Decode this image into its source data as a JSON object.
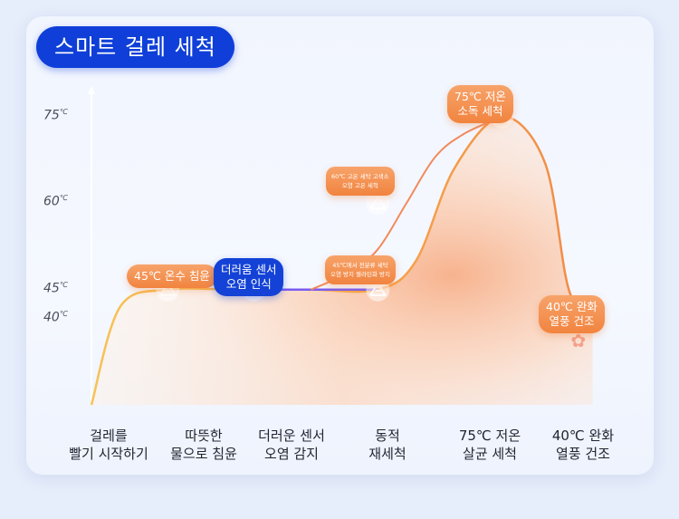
{
  "title": "스마트 걸레 세척",
  "colors": {
    "title_bg": "#0f3fd8",
    "curve_orange": "#f6a64a",
    "curve_purple": "#7b5cf0",
    "badge_orange": "#f1843f",
    "badge_blue": "#1442d6"
  },
  "annotations": [
    {
      "text": "45℃ 온수 침윤",
      "style": "orange"
    },
    {
      "text": "더러움 센서\n오염 인식",
      "style": "blue"
    },
    {
      "text": "60℃ 고온 세탁 고색소\n오염 고온 세척",
      "style": "orange"
    },
    {
      "text": "45℃에서 전분류 세탁\n오염 방지 젤라틴화 방지",
      "style": "orange"
    },
    {
      "text": "75℃ 저온\n소독 세척",
      "style": "orange"
    },
    {
      "text": "40℃ 완화\n열풍 건조",
      "style": "orange"
    }
  ],
  "icons": [
    "triangle-marker-icon",
    "sensor-icon",
    "fan-icon"
  ],
  "chart_data": {
    "type": "line",
    "title": "스마트 걸레 세척",
    "y_ticks": [
      "75",
      "60",
      "45",
      "40"
    ],
    "y_unit": "℃",
    "categories": [
      "걸레를\n빨기 시작하기",
      "따뜻한\n물으로 침윤",
      "더러운 센서\n오염 감지",
      "동적\n재세척",
      "75℃ 저온\n살균 세척",
      "40℃ 완화\n열풍 건조"
    ],
    "series": [
      {
        "points": [
          {
            "x": 0,
            "y": 25
          },
          {
            "x": 0.3,
            "y": 42
          },
          {
            "x": 0.8,
            "y": 45
          },
          {
            "x": 1.5,
            "y": 45
          },
          {
            "x": 2.3,
            "y": 45
          },
          {
            "x": 3.0,
            "y": 45
          },
          {
            "x": 3.4,
            "y": 50
          },
          {
            "x": 3.8,
            "y": 66
          },
          {
            "x": 4.3,
            "y": 75
          },
          {
            "x": 4.75,
            "y": 67
          },
          {
            "x": 5.0,
            "y": 45
          },
          {
            "x": 5.25,
            "y": 40
          }
        ]
      },
      {
        "points": [
          {
            "x": 2.3,
            "y": 45
          },
          {
            "x": 2.7,
            "y": 48
          },
          {
            "x": 3.0,
            "y": 52
          },
          {
            "x": 3.3,
            "y": 60
          },
          {
            "x": 3.6,
            "y": 68
          },
          {
            "x": 3.9,
            "y": 72
          },
          {
            "x": 4.3,
            "y": 75
          }
        ]
      }
    ],
    "markers": [
      {
        "x": 0.8,
        "y": 45,
        "icon": "triangle-marker-icon"
      },
      {
        "x": 1.7,
        "y": 45,
        "icon": "sensor-icon"
      },
      {
        "x": 3.0,
        "y": 45,
        "icon": "triangle-marker-icon"
      },
      {
        "x": 3.0,
        "y": 60,
        "icon": "triangle-marker-icon"
      },
      {
        "x": 4.3,
        "y": 75,
        "icon": "triangle-marker-icon"
      },
      {
        "x": 5.1,
        "y": 36,
        "icon": "fan-icon"
      }
    ],
    "ylim": [
      25,
      80
    ],
    "xlim": [
      0,
      5.5
    ],
    "legend": "none",
    "grid": false
  }
}
